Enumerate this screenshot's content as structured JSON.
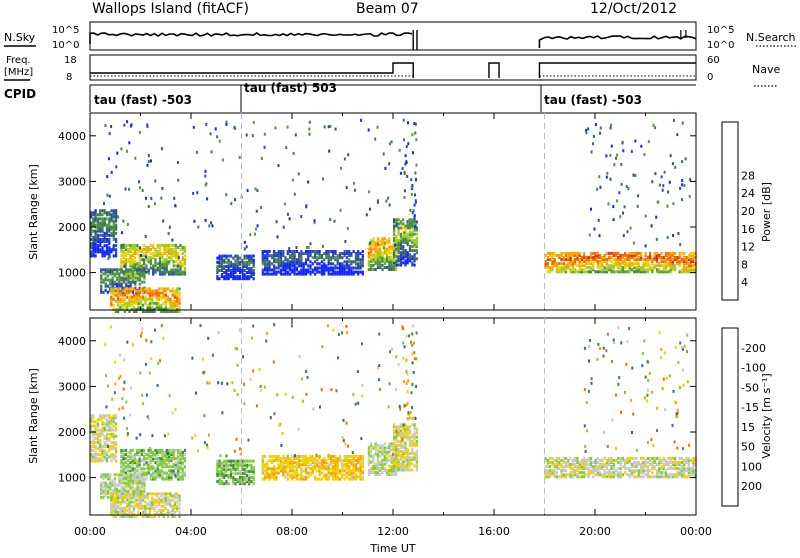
{
  "header": {
    "site": "Wallops Island (fitACF)",
    "beam": "Beam 07",
    "date": "12/Oct/2012"
  },
  "top_panels": {
    "nsky": {
      "label": "N.Sky",
      "right_label": "N.Search",
      "y_ticks": [
        "10^5",
        "10^0"
      ],
      "y_ticks_right": [
        "10^5",
        "10^0"
      ]
    },
    "freq": {
      "label_line1": "Freq.",
      "label_line2": "[MHz]",
      "right_label": "Nave",
      "y_ticks": [
        "18",
        "8"
      ],
      "y_ticks_right": [
        "60",
        "0"
      ]
    },
    "cpid": {
      "label": "CPID",
      "segments": [
        "tau (fast) -503",
        "tau (fast) 503",
        "tau (fast) -503"
      ]
    }
  },
  "chart_data": [
    {
      "type": "heatmap",
      "name": "power",
      "ylabel": "Slant Range [km]",
      "y_ticks": [
        1000,
        2000,
        3000,
        4000
      ],
      "ylim": [
        180,
        4500
      ],
      "xlim": [
        0,
        24
      ],
      "colorbar": {
        "label": "Power [dB]",
        "ticks": [
          4,
          8,
          12,
          16,
          20,
          24,
          28
        ],
        "colors": [
          "#1028ff",
          "#2c4ea6",
          "#3f7a52",
          "#4f9a36",
          "#9ccd2a",
          "#f0d000",
          "#f7a200",
          "#f46a00",
          "#ec2a00",
          "#d40000"
        ]
      },
      "scatter_regions": [
        {
          "t0": 0.5,
          "t1": 3.5,
          "r0": 1000,
          "r1": 4400,
          "cls": 1
        },
        {
          "t0": 7.0,
          "t1": 12.5,
          "r0": 1500,
          "r1": 4400,
          "cls": 1
        }
      ]
    },
    {
      "type": "heatmap",
      "name": "velocity",
      "ylabel": "Slant Range [km]",
      "y_ticks": [
        1000,
        2000,
        3000,
        4000
      ],
      "ylim": [
        180,
        4500
      ],
      "xlim": [
        0,
        24
      ],
      "colorbar": {
        "label": "Velocity [m s⁻¹]",
        "ticks": [
          200,
          100,
          50,
          15,
          -15,
          -50,
          -100,
          -200
        ],
        "colors": [
          "#1c3cb0",
          "#2c6c84",
          "#3c8c3c",
          "#7ccc3c",
          "#c8c8c8",
          "#f0d000",
          "#f7a200",
          "#f46a00",
          "#e81c00"
        ]
      }
    }
  ],
  "x_axis": {
    "ticks": [
      "00:00",
      "04:00",
      "08:00",
      "12:00",
      "16:00",
      "20:00",
      "00:00"
    ],
    "label": "Time UT"
  }
}
